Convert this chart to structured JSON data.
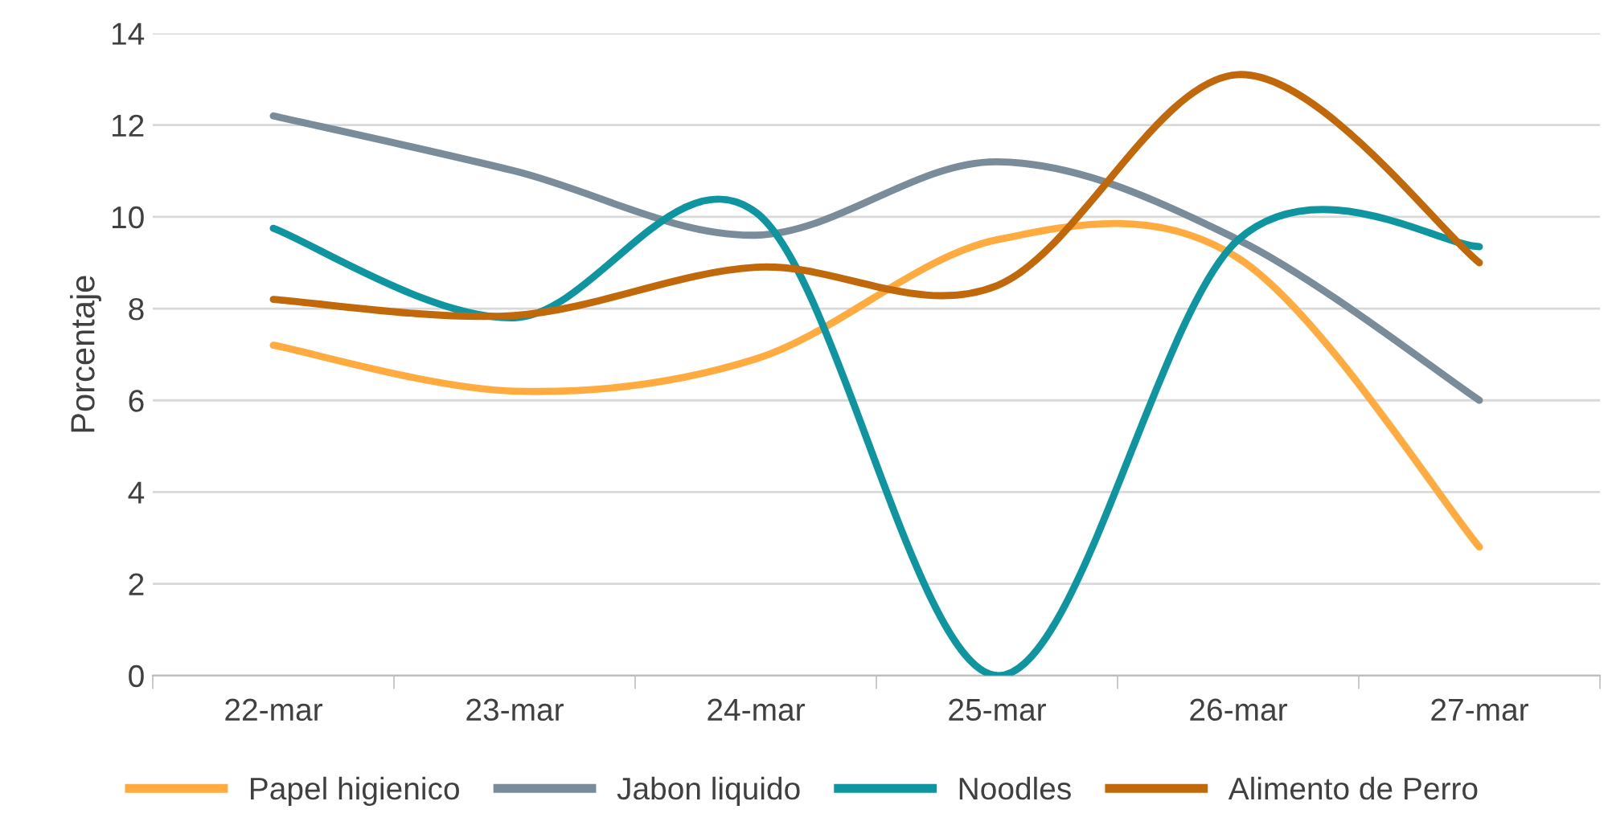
{
  "chart_data": {
    "type": "line",
    "ylabel": "Porcentaje",
    "categories": [
      "22-mar",
      "23-mar",
      "24-mar",
      "25-mar",
      "26-mar",
      "27-mar"
    ],
    "series": [
      {
        "name": "Papel higienico",
        "color": "#ffab40",
        "values": [
          7.2,
          6.2,
          6.9,
          9.5,
          9.1,
          2.8
        ]
      },
      {
        "name": "Jabon liquido",
        "color": "#7a8c99",
        "values": [
          12.2,
          11.0,
          9.6,
          11.2,
          9.5,
          6.0
        ]
      },
      {
        "name": "Noodles",
        "color": "#0e95a0",
        "values": [
          9.75,
          7.8,
          10.1,
          0,
          9.5,
          9.35
        ]
      },
      {
        "name": "Alimento de Perro",
        "color": "#c0680a",
        "values": [
          8.2,
          7.85,
          8.9,
          8.5,
          13.1,
          9.0
        ]
      }
    ],
    "ylim": [
      0,
      14
    ],
    "yticks": [
      0,
      2,
      4,
      6,
      8,
      10,
      12,
      14
    ],
    "grid": "y",
    "legend": "bottom",
    "marker": "none",
    "line_style": "solid"
  }
}
